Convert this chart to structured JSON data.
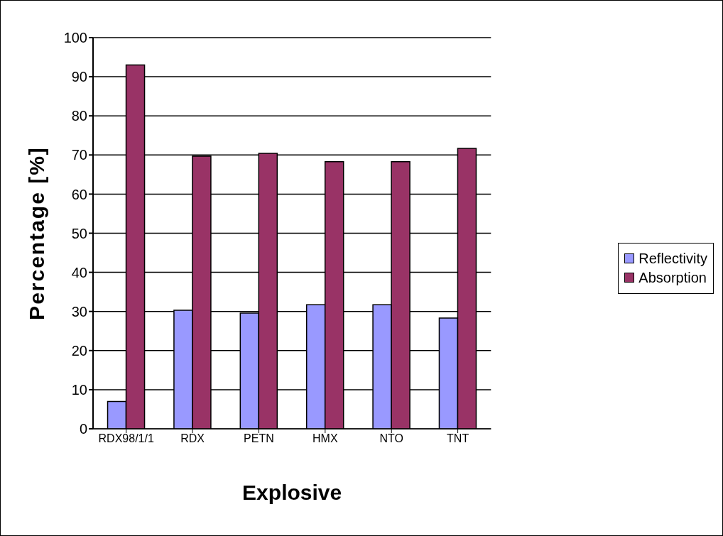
{
  "chart_data": {
    "type": "bar",
    "xlabel": "Explosive",
    "ylabel": "Percentage [%]",
    "categories": [
      "RDX98/1/1",
      "RDX",
      "PETN",
      "HMX",
      "NTO",
      "TNT"
    ],
    "series": [
      {
        "name": "Reflectivity",
        "color": "#9999ff",
        "values": [
          7,
          30.3,
          29.6,
          31.7,
          31.7,
          28.3
        ]
      },
      {
        "name": "Absorption",
        "color": "#993366",
        "values": [
          93,
          69.7,
          70.4,
          68.3,
          68.3,
          71.7
        ]
      }
    ],
    "ylim": [
      0,
      100
    ],
    "yticks": [
      0,
      10,
      20,
      30,
      40,
      50,
      60,
      70,
      80,
      90,
      100
    ],
    "grid": "y",
    "legend": "right"
  }
}
